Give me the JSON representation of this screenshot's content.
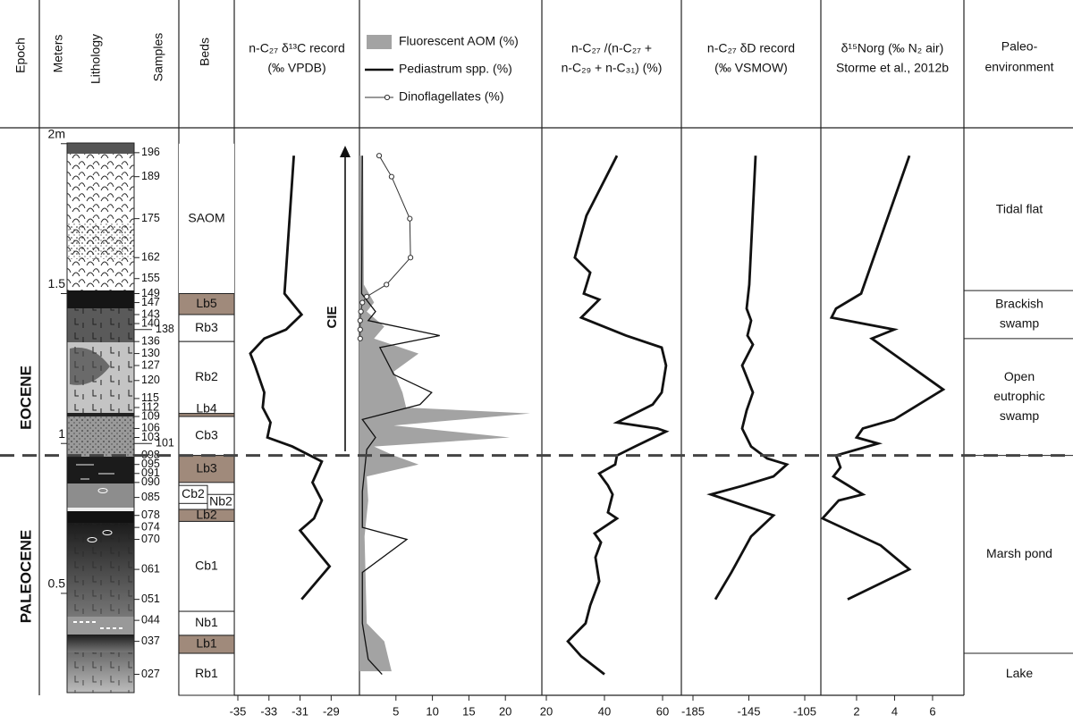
{
  "column_headers": {
    "epoch": "Epoch",
    "meters": "Meters",
    "lithology": "Lithology",
    "samples": "Samples",
    "beds": "Beds",
    "paleoenvironment": [
      "Paleo-",
      "environment"
    ]
  },
  "epochs": [
    "EOCENE",
    "PALEOCENE"
  ],
  "boundary": 0.96,
  "depth_axis": {
    "ylim": [
      0.16,
      2.05
    ],
    "ticks": [
      {
        "value": 2,
        "label": "2m"
      },
      1.5,
      1,
      0.5
    ]
  },
  "samples": [
    {
      "label": "196",
      "depth": 1.97
    },
    {
      "label": "189",
      "depth": 1.89
    },
    {
      "label": "175",
      "depth": 1.75
    },
    {
      "label": "162",
      "depth": 1.62
    },
    {
      "label": "155",
      "depth": 1.55
    },
    {
      "label": "149",
      "depth": 1.5
    },
    {
      "label": "147",
      "depth": 1.47
    },
    {
      "label": "143",
      "depth": 1.43
    },
    {
      "label": "140",
      "depth": 1.4
    },
    {
      "label": "138",
      "depth": 1.38
    },
    {
      "label": "136",
      "depth": 1.34
    },
    {
      "label": "130",
      "depth": 1.3
    },
    {
      "label": "127",
      "depth": 1.26
    },
    {
      "label": "120",
      "depth": 1.21
    },
    {
      "label": "115",
      "depth": 1.15
    },
    {
      "label": "112",
      "depth": 1.12
    },
    {
      "label": "109",
      "depth": 1.09
    },
    {
      "label": "106",
      "depth": 1.05
    },
    {
      "label": "103",
      "depth": 1.02
    },
    {
      "label": "101",
      "depth": 1.0
    },
    {
      "label": "098",
      "depth": 0.96
    },
    {
      "label": "095",
      "depth": 0.93
    },
    {
      "label": "091",
      "depth": 0.9
    },
    {
      "label": "090",
      "depth": 0.87
    },
    {
      "label": "085",
      "depth": 0.82
    },
    {
      "label": "078",
      "depth": 0.76
    },
    {
      "label": "074",
      "depth": 0.72
    },
    {
      "label": "070",
      "depth": 0.68
    },
    {
      "label": "061",
      "depth": 0.58
    },
    {
      "label": "051",
      "depth": 0.48
    },
    {
      "label": "044",
      "depth": 0.41
    },
    {
      "label": "037",
      "depth": 0.34
    },
    {
      "label": "027",
      "depth": 0.23
    }
  ],
  "beds": [
    {
      "name": "SAOM",
      "top": 2.0,
      "bottom": 1.5
    },
    {
      "name": "Lb5",
      "top": 1.5,
      "bottom": 1.43,
      "fill": "#a08a7b"
    },
    {
      "name": "Rb3",
      "top": 1.43,
      "bottom": 1.34
    },
    {
      "name": "Rb2",
      "top": 1.34,
      "bottom": 1.1
    },
    {
      "name": "Lb4",
      "top": 1.1,
      "bottom": 1.09,
      "fill": "#a08a7b"
    },
    {
      "name": "Cb3",
      "top": 1.09,
      "bottom": 0.96
    },
    {
      "name": "Lb3",
      "top": 0.96,
      "bottom": 0.87,
      "fill": "#a08a7b"
    },
    {
      "name": "Cb2",
      "top": 0.86,
      "bottom": 0.8
    },
    {
      "name": "Nb2",
      "top": 0.83,
      "bottom": 0.78
    },
    {
      "name": "Lb2",
      "top": 0.78,
      "bottom": 0.74,
      "fill": "#a08a7b"
    },
    {
      "name": "Cb1",
      "top": 0.74,
      "bottom": 0.44
    },
    {
      "name": "Nb1",
      "top": 0.44,
      "bottom": 0.36
    },
    {
      "name": "Lb1",
      "top": 0.36,
      "bottom": 0.3,
      "fill": "#a08a7b"
    },
    {
      "name": "Rb1",
      "top": 0.3,
      "bottom": 0.16
    }
  ],
  "environments": [
    {
      "label": [
        "Tidal flat"
      ],
      "top": 2.05,
      "bottom": 1.51
    },
    {
      "label": [
        "Brackish",
        "swamp"
      ],
      "top": 1.51,
      "bottom": 1.35
    },
    {
      "label": [
        "Open",
        "eutrophic",
        "swamp"
      ],
      "top": 1.35,
      "bottom": 0.96
    },
    {
      "label": [
        "Marsh pond"
      ],
      "top": 0.96,
      "bottom": 0.3
    },
    {
      "label": [
        "Lake"
      ],
      "top": 0.3,
      "bottom": 0.16
    }
  ],
  "annotation": "CIE",
  "chart_data": [
    {
      "type": "line",
      "title": [
        "n-C₂₇ δ¹³C record",
        "(‰ VPDB)"
      ],
      "xlim": [
        -35.23,
        -27.18
      ],
      "xticks": [
        -35,
        -33,
        -31,
        -29
      ],
      "series": [
        {
          "color": "#111111",
          "depth": [
            1.96,
            1.5,
            1.43,
            1.38,
            1.35,
            1.3,
            1.26,
            1.17,
            1.12,
            1.07,
            1.02,
            0.99,
            0.94,
            0.87,
            0.81,
            0.75,
            0.71,
            0.59,
            0.48
          ],
          "values": [
            -31.4,
            -32.0,
            -30.9,
            -31.9,
            -33.3,
            -34.2,
            -33.9,
            -33.3,
            -33.4,
            -32.9,
            -33.1,
            -31.5,
            -29.6,
            -30.2,
            -29.6,
            -30.1,
            -31.0,
            -29.1,
            -30.9
          ]
        }
      ]
    },
    {
      "type": "line",
      "xlim": [
        0,
        25
      ],
      "xticks": [
        5,
        10,
        15,
        20
      ],
      "series": [
        {
          "name": "Fluorescent AOM (%)",
          "color": "#a3a3a3",
          "fill": true,
          "depth": [
            1.96,
            1.53,
            1.47,
            1.44,
            1.39,
            1.35,
            1.3,
            1.24,
            1.17,
            1.12,
            1.1,
            1.06,
            1.02,
            0.99,
            0.96,
            0.93,
            0.89,
            0.81,
            0.69,
            0.4,
            0.34,
            0.24
          ],
          "values": [
            0.5,
            0.6,
            2.0,
            1.0,
            3.4,
            2.0,
            8.1,
            4.7,
            5.9,
            6.4,
            23.4,
            4.7,
            20.6,
            2.0,
            4.7,
            8.1,
            1.0,
            1.2,
            0.7,
            1.0,
            3.4,
            4.4
          ]
        },
        {
          "name": "Pediastrum spp. (%)",
          "color": "#111111",
          "depth": [
            1.96,
            1.5,
            1.44,
            1.41,
            1.36,
            1.32,
            1.23,
            1.17,
            1.13,
            1.08,
            1.02,
            0.98,
            0.84,
            0.72,
            0.68,
            0.57,
            0.4,
            0.28,
            0.23
          ],
          "values": [
            0.4,
            0.3,
            2.2,
            1.2,
            11.0,
            2.8,
            4.7,
            9.9,
            8.3,
            0.4,
            2.2,
            1.0,
            0.4,
            0.4,
            6.5,
            0.4,
            0.4,
            1.2,
            3.1
          ]
        },
        {
          "name": "Dinoflagellates (%)",
          "color": "#333333",
          "markers": true,
          "depth": [
            1.96,
            1.89,
            1.75,
            1.62,
            1.53,
            1.49,
            1.47,
            1.44,
            1.41,
            1.38,
            1.35
          ],
          "values": [
            2.7,
            4.4,
            6.9,
            7.0,
            3.7,
            1.0,
            0.4,
            0.2,
            0.1,
            0.1,
            0.1
          ]
        }
      ]
    },
    {
      "type": "line",
      "title": [
        "n-C₂₇ /(n-C₂₇ +",
        "n-C₂₉  + n-C₃₁) (%)"
      ],
      "xlim": [
        18.46,
        66.46
      ],
      "xticks": [
        20,
        40,
        60
      ],
      "series": [
        {
          "color": "#111111",
          "depth": [
            1.96,
            1.76,
            1.62,
            1.57,
            1.5,
            1.48,
            1.42,
            1.36,
            1.32,
            1.26,
            1.17,
            1.13,
            1.07,
            1.05,
            1.04,
            0.99,
            0.96,
            0.93,
            0.9,
            0.86,
            0.83,
            0.77,
            0.75,
            0.7,
            0.67,
            0.62,
            0.54,
            0.46,
            0.4,
            0.34,
            0.29,
            0.23
          ],
          "values": [
            44.3,
            33.8,
            29.8,
            35.1,
            32.9,
            38.2,
            32.0,
            47.4,
            59.7,
            61.2,
            59.7,
            56.6,
            44.3,
            58.2,
            61.2,
            50.5,
            44.3,
            43.7,
            38.2,
            41.2,
            42.8,
            41.2,
            44.3,
            36.6,
            38.8,
            36.9,
            38.2,
            35.1,
            33.5,
            27.4,
            32.0,
            40.0
          ]
        }
      ]
    },
    {
      "type": "line",
      "title": [
        "n-C₂₇ δD record",
        "(‰ VSMOW)"
      ],
      "xlim": [
        -193.32,
        -93.48
      ],
      "xticks": [
        -185,
        -145,
        -105
      ],
      "series": [
        {
          "color": "#111111",
          "depth": [
            1.96,
            1.53,
            1.45,
            1.41,
            1.36,
            1.33,
            1.26,
            1.17,
            1.11,
            1.05,
            0.99,
            0.95,
            0.93,
            0.89,
            0.86,
            0.83,
            0.76,
            0.69,
            0.57,
            0.48
          ],
          "values": [
            -140.2,
            -144.7,
            -146.6,
            -143.4,
            -146.0,
            -142.1,
            -149.8,
            -142.1,
            -146.6,
            -149.8,
            -143.4,
            -131.9,
            -117.8,
            -127.4,
            -148.5,
            -172.2,
            -127.4,
            -143.4,
            -157.5,
            -169.0
          ]
        }
      ]
    },
    {
      "type": "line",
      "title": [
        "δ¹⁵Norg (‰ N₂ air)",
        "Storme et al., 2012b"
      ],
      "xlim": [
        0.12,
        7.65
      ],
      "xticks": [
        2,
        4,
        6
      ],
      "series": [
        {
          "color": "#111111",
          "depth": [
            1.96,
            1.5,
            1.45,
            1.42,
            1.38,
            1.35,
            1.18,
            1.08,
            1.05,
            1.02,
            1.0,
            0.96,
            0.92,
            0.89,
            0.83,
            0.81,
            0.75,
            0.66,
            0.58,
            0.48
          ],
          "values": [
            4.78,
            2.24,
            0.92,
            0.68,
            3.98,
            2.8,
            6.56,
            3.98,
            2.33,
            2.0,
            3.13,
            0.92,
            1.15,
            0.78,
            2.33,
            1.06,
            0.21,
            3.27,
            4.78,
            1.53
          ]
        }
      ]
    }
  ]
}
